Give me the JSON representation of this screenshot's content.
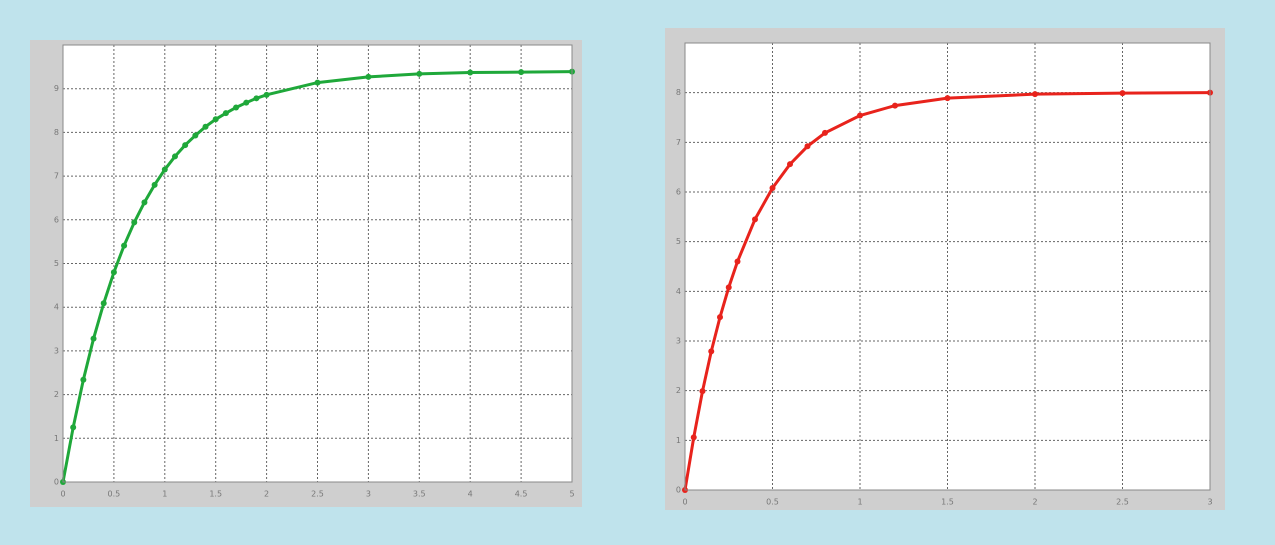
{
  "chart_data": [
    {
      "type": "line",
      "x": [
        0,
        0.1,
        0.2,
        0.3,
        0.4,
        0.5,
        0.6,
        0.7,
        0.8,
        0.9,
        1.0,
        1.1,
        1.2,
        1.3,
        1.4,
        1.5,
        1.6,
        1.7,
        1.8,
        1.9,
        2.0,
        2.5,
        3.0,
        3.5,
        4.0,
        4.5,
        5.0
      ],
      "series": [
        {
          "color": "#1fa83a",
          "values": [
            0,
            1.25,
            2.34,
            3.28,
            4.09,
            4.8,
            5.41,
            5.94,
            6.4,
            6.8,
            7.15,
            7.45,
            7.71,
            7.93,
            8.13,
            8.3,
            8.44,
            8.57,
            8.68,
            8.78,
            8.86,
            9.14,
            9.27,
            9.34,
            9.37,
            9.38,
            9.39
          ]
        }
      ],
      "xlim": [
        0,
        5
      ],
      "xticks": [
        0,
        0.5,
        1,
        1.5,
        2,
        2.5,
        3,
        3.5,
        4,
        4.5,
        5
      ],
      "ylim": [
        0,
        10
      ],
      "yticks": [
        0,
        1,
        2,
        3,
        4,
        5,
        6,
        7,
        8,
        9
      ],
      "grid": true
    },
    {
      "type": "line",
      "x": [
        0,
        0.05,
        0.1,
        0.15,
        0.2,
        0.25,
        0.3,
        0.4,
        0.5,
        0.6,
        0.7,
        0.8,
        1.0,
        1.2,
        1.5,
        2.0,
        2.5,
        3.0
      ],
      "series": [
        {
          "color": "#e8231c",
          "values": [
            0,
            1.06,
            1.99,
            2.79,
            3.48,
            4.08,
            4.6,
            5.45,
            6.08,
            6.56,
            6.92,
            7.19,
            7.54,
            7.74,
            7.89,
            7.97,
            7.99,
            8.0
          ]
        }
      ],
      "xlim": [
        0,
        3
      ],
      "xticks": [
        0,
        0.5,
        1,
        1.5,
        2,
        2.5,
        3
      ],
      "ylim": [
        0,
        9
      ],
      "yticks": [
        0,
        1,
        2,
        3,
        4,
        5,
        6,
        7,
        8
      ],
      "grid": true
    }
  ]
}
